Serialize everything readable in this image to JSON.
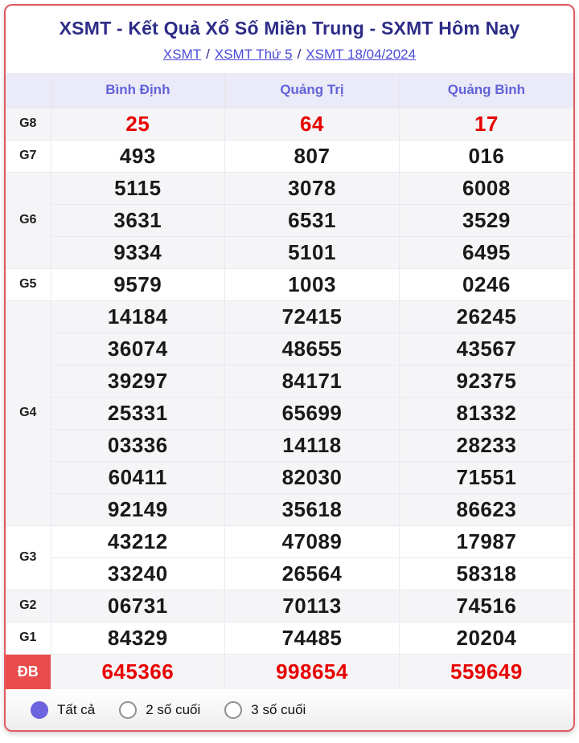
{
  "header": {
    "title": "XSMT - Kết Quả Xổ Số Miền Trung - SXMT Hôm Nay",
    "breadcrumb": [
      "XSMT",
      "XSMT Thứ 5",
      "XSMT 18/04/2024"
    ],
    "separator": "/"
  },
  "results_table": {
    "columns": [
      "Bình Định",
      "Quảng Trị",
      "Quảng Bình"
    ],
    "prizes": [
      {
        "label": "G8",
        "red": true,
        "band": "gray",
        "label_badge": false,
        "rows": [
          [
            "25",
            "64",
            "17"
          ]
        ]
      },
      {
        "label": "G7",
        "red": false,
        "band": "white",
        "label_badge": false,
        "rows": [
          [
            "493",
            "807",
            "016"
          ]
        ]
      },
      {
        "label": "G6",
        "red": false,
        "band": "gray",
        "label_badge": false,
        "rows": [
          [
            "5115",
            "3078",
            "6008"
          ],
          [
            "3631",
            "6531",
            "3529"
          ],
          [
            "9334",
            "5101",
            "6495"
          ]
        ]
      },
      {
        "label": "G5",
        "red": false,
        "band": "white",
        "label_badge": false,
        "rows": [
          [
            "9579",
            "1003",
            "0246"
          ]
        ]
      },
      {
        "label": "G4",
        "red": false,
        "band": "gray",
        "label_badge": false,
        "rows": [
          [
            "14184",
            "72415",
            "26245"
          ],
          [
            "36074",
            "48655",
            "43567"
          ],
          [
            "39297",
            "84171",
            "92375"
          ],
          [
            "25331",
            "65699",
            "81332"
          ],
          [
            "03336",
            "14118",
            "28233"
          ],
          [
            "60411",
            "82030",
            "71551"
          ],
          [
            "92149",
            "35618",
            "86623"
          ]
        ]
      },
      {
        "label": "G3",
        "red": false,
        "band": "white",
        "label_badge": false,
        "rows": [
          [
            "43212",
            "47089",
            "17987"
          ],
          [
            "33240",
            "26564",
            "58318"
          ]
        ]
      },
      {
        "label": "G2",
        "red": false,
        "band": "gray",
        "label_badge": false,
        "rows": [
          [
            "06731",
            "70113",
            "74516"
          ]
        ]
      },
      {
        "label": "G1",
        "red": false,
        "band": "white",
        "label_badge": false,
        "rows": [
          [
            "84329",
            "74485",
            "20204"
          ]
        ]
      },
      {
        "label": "ĐB",
        "red": true,
        "band": "gray",
        "label_badge": true,
        "rows": [
          [
            "645366",
            "998654",
            "559649"
          ]
        ]
      }
    ]
  },
  "filters": {
    "options": [
      {
        "label": "Tất cả",
        "selected": true
      },
      {
        "label": "2 số cuối",
        "selected": false
      },
      {
        "label": "3 số cuối",
        "selected": false
      }
    ]
  },
  "colors": {
    "card_border": "#e4575f",
    "title_text": "#2d2d87",
    "link_text": "#4a4ad8",
    "header_bg": "#eaeaf8",
    "header_text": "#6262d9",
    "band_gray": "#f5f5f7",
    "value_text": "#191919",
    "highlight_red": "#e80000",
    "db_badge_bg": "#ea4c4c",
    "radio_selected": "#6e63de"
  }
}
